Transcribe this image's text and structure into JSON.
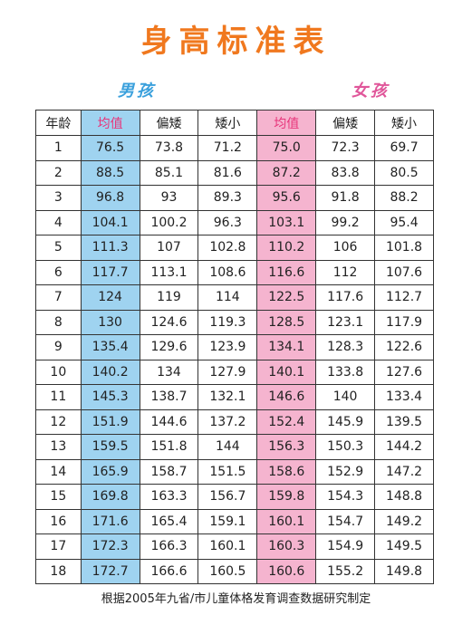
{
  "title": "身高标准表",
  "boys_label": "男孩",
  "girls_label": "女孩",
  "headers": {
    "age": "年龄",
    "boys": {
      "avg": "均值",
      "short": "偏矮",
      "very_short": "矮小"
    },
    "girls": {
      "avg": "均值",
      "short": "偏矮",
      "very_short": "矮小"
    }
  },
  "colors": {
    "title": "#f0781e",
    "boys_accent": "#3aa0dc",
    "girls_accent": "#e0569a",
    "boys_avg_fill": "#9fd3f0",
    "girls_avg_fill": "#f5b4cf"
  },
  "rows": [
    {
      "age": "1",
      "boys": [
        "76.5",
        "73.8",
        "71.2"
      ],
      "girls": [
        "75.0",
        "72.3",
        "69.7"
      ]
    },
    {
      "age": "2",
      "boys": [
        "88.5",
        "85.1",
        "81.6"
      ],
      "girls": [
        "87.2",
        "83.8",
        "80.5"
      ]
    },
    {
      "age": "3",
      "boys": [
        "96.8",
        "93",
        "89.3"
      ],
      "girls": [
        "95.6",
        "91.8",
        "88.2"
      ]
    },
    {
      "age": "4",
      "boys": [
        "104.1",
        "100.2",
        "96.3"
      ],
      "girls": [
        "103.1",
        "99.2",
        "95.4"
      ]
    },
    {
      "age": "5",
      "boys": [
        "111.3",
        "107",
        "102.8"
      ],
      "girls": [
        "110.2",
        "106",
        "101.8"
      ]
    },
    {
      "age": "6",
      "boys": [
        "117.7",
        "113.1",
        "108.6"
      ],
      "girls": [
        "116.6",
        "112",
        "107.6"
      ]
    },
    {
      "age": "7",
      "boys": [
        "124",
        "119",
        "114"
      ],
      "girls": [
        "122.5",
        "117.6",
        "112.7"
      ]
    },
    {
      "age": "8",
      "boys": [
        "130",
        "124.6",
        "119.3"
      ],
      "girls": [
        "128.5",
        "123.1",
        "117.9"
      ]
    },
    {
      "age": "9",
      "boys": [
        "135.4",
        "129.6",
        "123.9"
      ],
      "girls": [
        "134.1",
        "128.3",
        "122.6"
      ]
    },
    {
      "age": "10",
      "boys": [
        "140.2",
        "134",
        "127.9"
      ],
      "girls": [
        "140.1",
        "133.8",
        "127.6"
      ]
    },
    {
      "age": "11",
      "boys": [
        "145.3",
        "138.7",
        "132.1"
      ],
      "girls": [
        "146.6",
        "140",
        "133.4"
      ]
    },
    {
      "age": "12",
      "boys": [
        "151.9",
        "144.6",
        "137.2"
      ],
      "girls": [
        "152.4",
        "145.9",
        "139.5"
      ]
    },
    {
      "age": "13",
      "boys": [
        "159.5",
        "151.8",
        "144"
      ],
      "girls": [
        "156.3",
        "150.3",
        "144.2"
      ]
    },
    {
      "age": "14",
      "boys": [
        "165.9",
        "158.7",
        "151.5"
      ],
      "girls": [
        "158.6",
        "152.9",
        "147.2"
      ]
    },
    {
      "age": "15",
      "boys": [
        "169.8",
        "163.3",
        "156.7"
      ],
      "girls": [
        "159.8",
        "154.3",
        "148.8"
      ]
    },
    {
      "age": "16",
      "boys": [
        "171.6",
        "165.4",
        "159.1"
      ],
      "girls": [
        "160.1",
        "154.7",
        "149.2"
      ]
    },
    {
      "age": "17",
      "boys": [
        "172.3",
        "166.3",
        "160.1"
      ],
      "girls": [
        "160.3",
        "154.9",
        "149.5"
      ]
    },
    {
      "age": "18",
      "boys": [
        "172.7",
        "166.6",
        "160.5"
      ],
      "girls": [
        "160.6",
        "155.2",
        "149.8"
      ]
    }
  ],
  "footer": "根据2005年九省/市儿童体格发育调查数据研究制定"
}
